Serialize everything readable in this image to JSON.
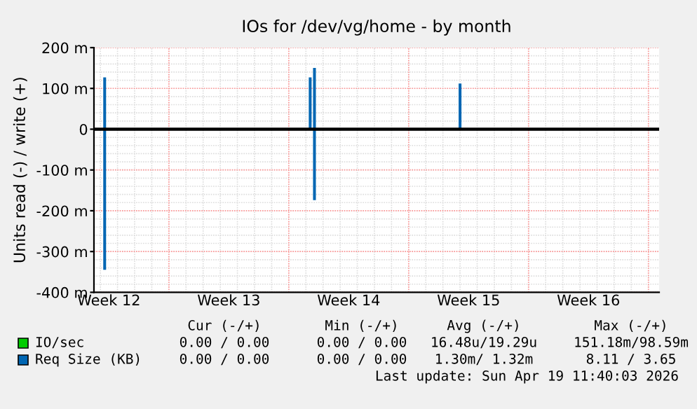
{
  "chart_data": {
    "type": "bar",
    "title": "IOs for /dev/vg/home - by month",
    "ylabel": "Units read (-) / write (+)",
    "categories": [
      null,
      null,
      null,
      "Week 12",
      null,
      null,
      null,
      null,
      null,
      null,
      null,
      null,
      null,
      null,
      null,
      null,
      null,
      null,
      null,
      null,
      null,
      null,
      null,
      null,
      null,
      null,
      null,
      null,
      null,
      null,
      null,
      "Week 13",
      null,
      null,
      null,
      null,
      null,
      null,
      null,
      null,
      null,
      null,
      null,
      null,
      null,
      null,
      null,
      null,
      null,
      null,
      null,
      null,
      null,
      null,
      null,
      null,
      null,
      null,
      null,
      "Week 14",
      null,
      null,
      null,
      null,
      null,
      null,
      null,
      null,
      null,
      null,
      null,
      null,
      null,
      null,
      null,
      null,
      null,
      null,
      null,
      null,
      null,
      null,
      null,
      null,
      null,
      null,
      null,
      "Week 15",
      null,
      null,
      null,
      null,
      null,
      null,
      null,
      null,
      null,
      null,
      null,
      null,
      null,
      null,
      null,
      null,
      null,
      null,
      null,
      null,
      null,
      null,
      null,
      null,
      null,
      null,
      null,
      "Week 16",
      null,
      null,
      null,
      null,
      null,
      null,
      null,
      null,
      null,
      null,
      null,
      null,
      null,
      null,
      null,
      null
    ],
    "series": [
      {
        "name": "IO/sec",
        "color": "#00cc00",
        "values": [
          null,
          null,
          null,
          null,
          null,
          null,
          null,
          null,
          null,
          null,
          null,
          null,
          null,
          null,
          null,
          null,
          null,
          null,
          null,
          null,
          null,
          null,
          null,
          null,
          null,
          null,
          null,
          null,
          null,
          null,
          null,
          null,
          null,
          null,
          null,
          null,
          null,
          null,
          null,
          null,
          null,
          null,
          null,
          null,
          null,
          null,
          null,
          null,
          null,
          null,
          null,
          null,
          null,
          null,
          null,
          null,
          null,
          null,
          null,
          null,
          null,
          null,
          null,
          null,
          null,
          null,
          null,
          null,
          null,
          null,
          null,
          null,
          null,
          null,
          null,
          null,
          null,
          null,
          null,
          null,
          null,
          null,
          null,
          null,
          null,
          null,
          null,
          null,
          null,
          null,
          null,
          null,
          null,
          null,
          null,
          null,
          null,
          null,
          null,
          null,
          null,
          null,
          null,
          null,
          null,
          null,
          null,
          null,
          null,
          null,
          null,
          null,
          null,
          null,
          null,
          null,
          null,
          null,
          null,
          null,
          null,
          null,
          null,
          null,
          null,
          null,
          null,
          null,
          null,
          null,
          null,
          null
        ]
      },
      {
        "name": "Req Size (KB)",
        "color": "#0066b3",
        "values": [
          null,
          null,
          127,
          null,
          null,
          null,
          null,
          null,
          null,
          null,
          null,
          null,
          null,
          null,
          null,
          null,
          null,
          null,
          null,
          null,
          null,
          null,
          null,
          null,
          null,
          null,
          null,
          null,
          null,
          null,
          null,
          null,
          null,
          null,
          null,
          null,
          null,
          null,
          null,
          null,
          null,
          null,
          null,
          null,
          null,
          null,
          null,
          null,
          null,
          null,
          127,
          150,
          null,
          null,
          null,
          null,
          null,
          null,
          null,
          null,
          null,
          null,
          null,
          null,
          null,
          null,
          null,
          null,
          null,
          null,
          null,
          null,
          null,
          null,
          null,
          null,
          null,
          null,
          null,
          null,
          null,
          null,
          null,
          null,
          null,
          112,
          null,
          null,
          null,
          null,
          null,
          null,
          null,
          null,
          null,
          null,
          null,
          null,
          null,
          null,
          null,
          null,
          null,
          null,
          null,
          null,
          null,
          null,
          null,
          null,
          null,
          null,
          null,
          null,
          null,
          null,
          null,
          null,
          null,
          null,
          null,
          null,
          null,
          null,
          null,
          null,
          null,
          null,
          null,
          null,
          null,
          null
        ]
      },
      {
        "color": "#0066b3",
        "values": [
          null,
          null,
          -345,
          null,
          null,
          null,
          null,
          null,
          null,
          null,
          null,
          null,
          null,
          null,
          null,
          null,
          null,
          null,
          null,
          null,
          null,
          null,
          null,
          null,
          null,
          null,
          null,
          null,
          null,
          null,
          null,
          null,
          null,
          null,
          null,
          null,
          null,
          null,
          null,
          null,
          null,
          null,
          null,
          null,
          null,
          null,
          null,
          null,
          null,
          null,
          null,
          -174,
          null,
          null,
          null,
          null,
          null,
          null,
          null,
          null,
          null,
          null,
          null,
          null,
          null,
          null,
          null,
          null,
          null,
          null,
          null,
          null,
          null,
          null,
          null,
          null,
          null,
          null,
          null,
          null,
          null,
          null,
          null,
          null,
          null,
          null,
          null,
          null,
          null,
          null,
          null,
          null,
          null,
          null,
          null,
          null,
          null,
          null,
          null,
          null,
          null,
          null,
          null,
          null,
          null,
          null,
          null,
          null,
          null,
          null,
          null,
          null,
          null,
          null,
          null,
          null,
          null,
          null,
          null,
          null,
          null,
          null,
          null,
          null,
          null,
          null,
          null,
          null,
          null,
          null,
          null,
          null
        ]
      }
    ],
    "ylim": [
      -400,
      200
    ],
    "yticks": [
      {
        "value": -400,
        "label": "-400 m"
      },
      {
        "value": -300,
        "label": "-300 m"
      },
      {
        "value": -200,
        "label": "-200 m"
      },
      {
        "value": -100,
        "label": "-100 m"
      },
      0,
      {
        "value": 100,
        "label": "100 m"
      },
      {
        "value": 200,
        "label": "200 m"
      }
    ],
    "ref_lines": [
      {
        "axis": "y",
        "value": 0,
        "color": "#000000"
      }
    ],
    "grid": true,
    "legend": "bottom",
    "annotations": [
      "Cur (-/+)",
      "Min (-/+)",
      "Avg (-/+)",
      "Max (-/+)",
      "0.00 / 0.00",
      "0.00 / 0.00",
      "16.48u/19.29u",
      "151.18m/98.59m",
      "0.00 / 0.00",
      "0.00 / 0.00",
      "1.30m/ 1.32m",
      "8.11 / 3.65",
      "Last update: Sun Apr 19 11:40:03 2026"
    ]
  }
}
